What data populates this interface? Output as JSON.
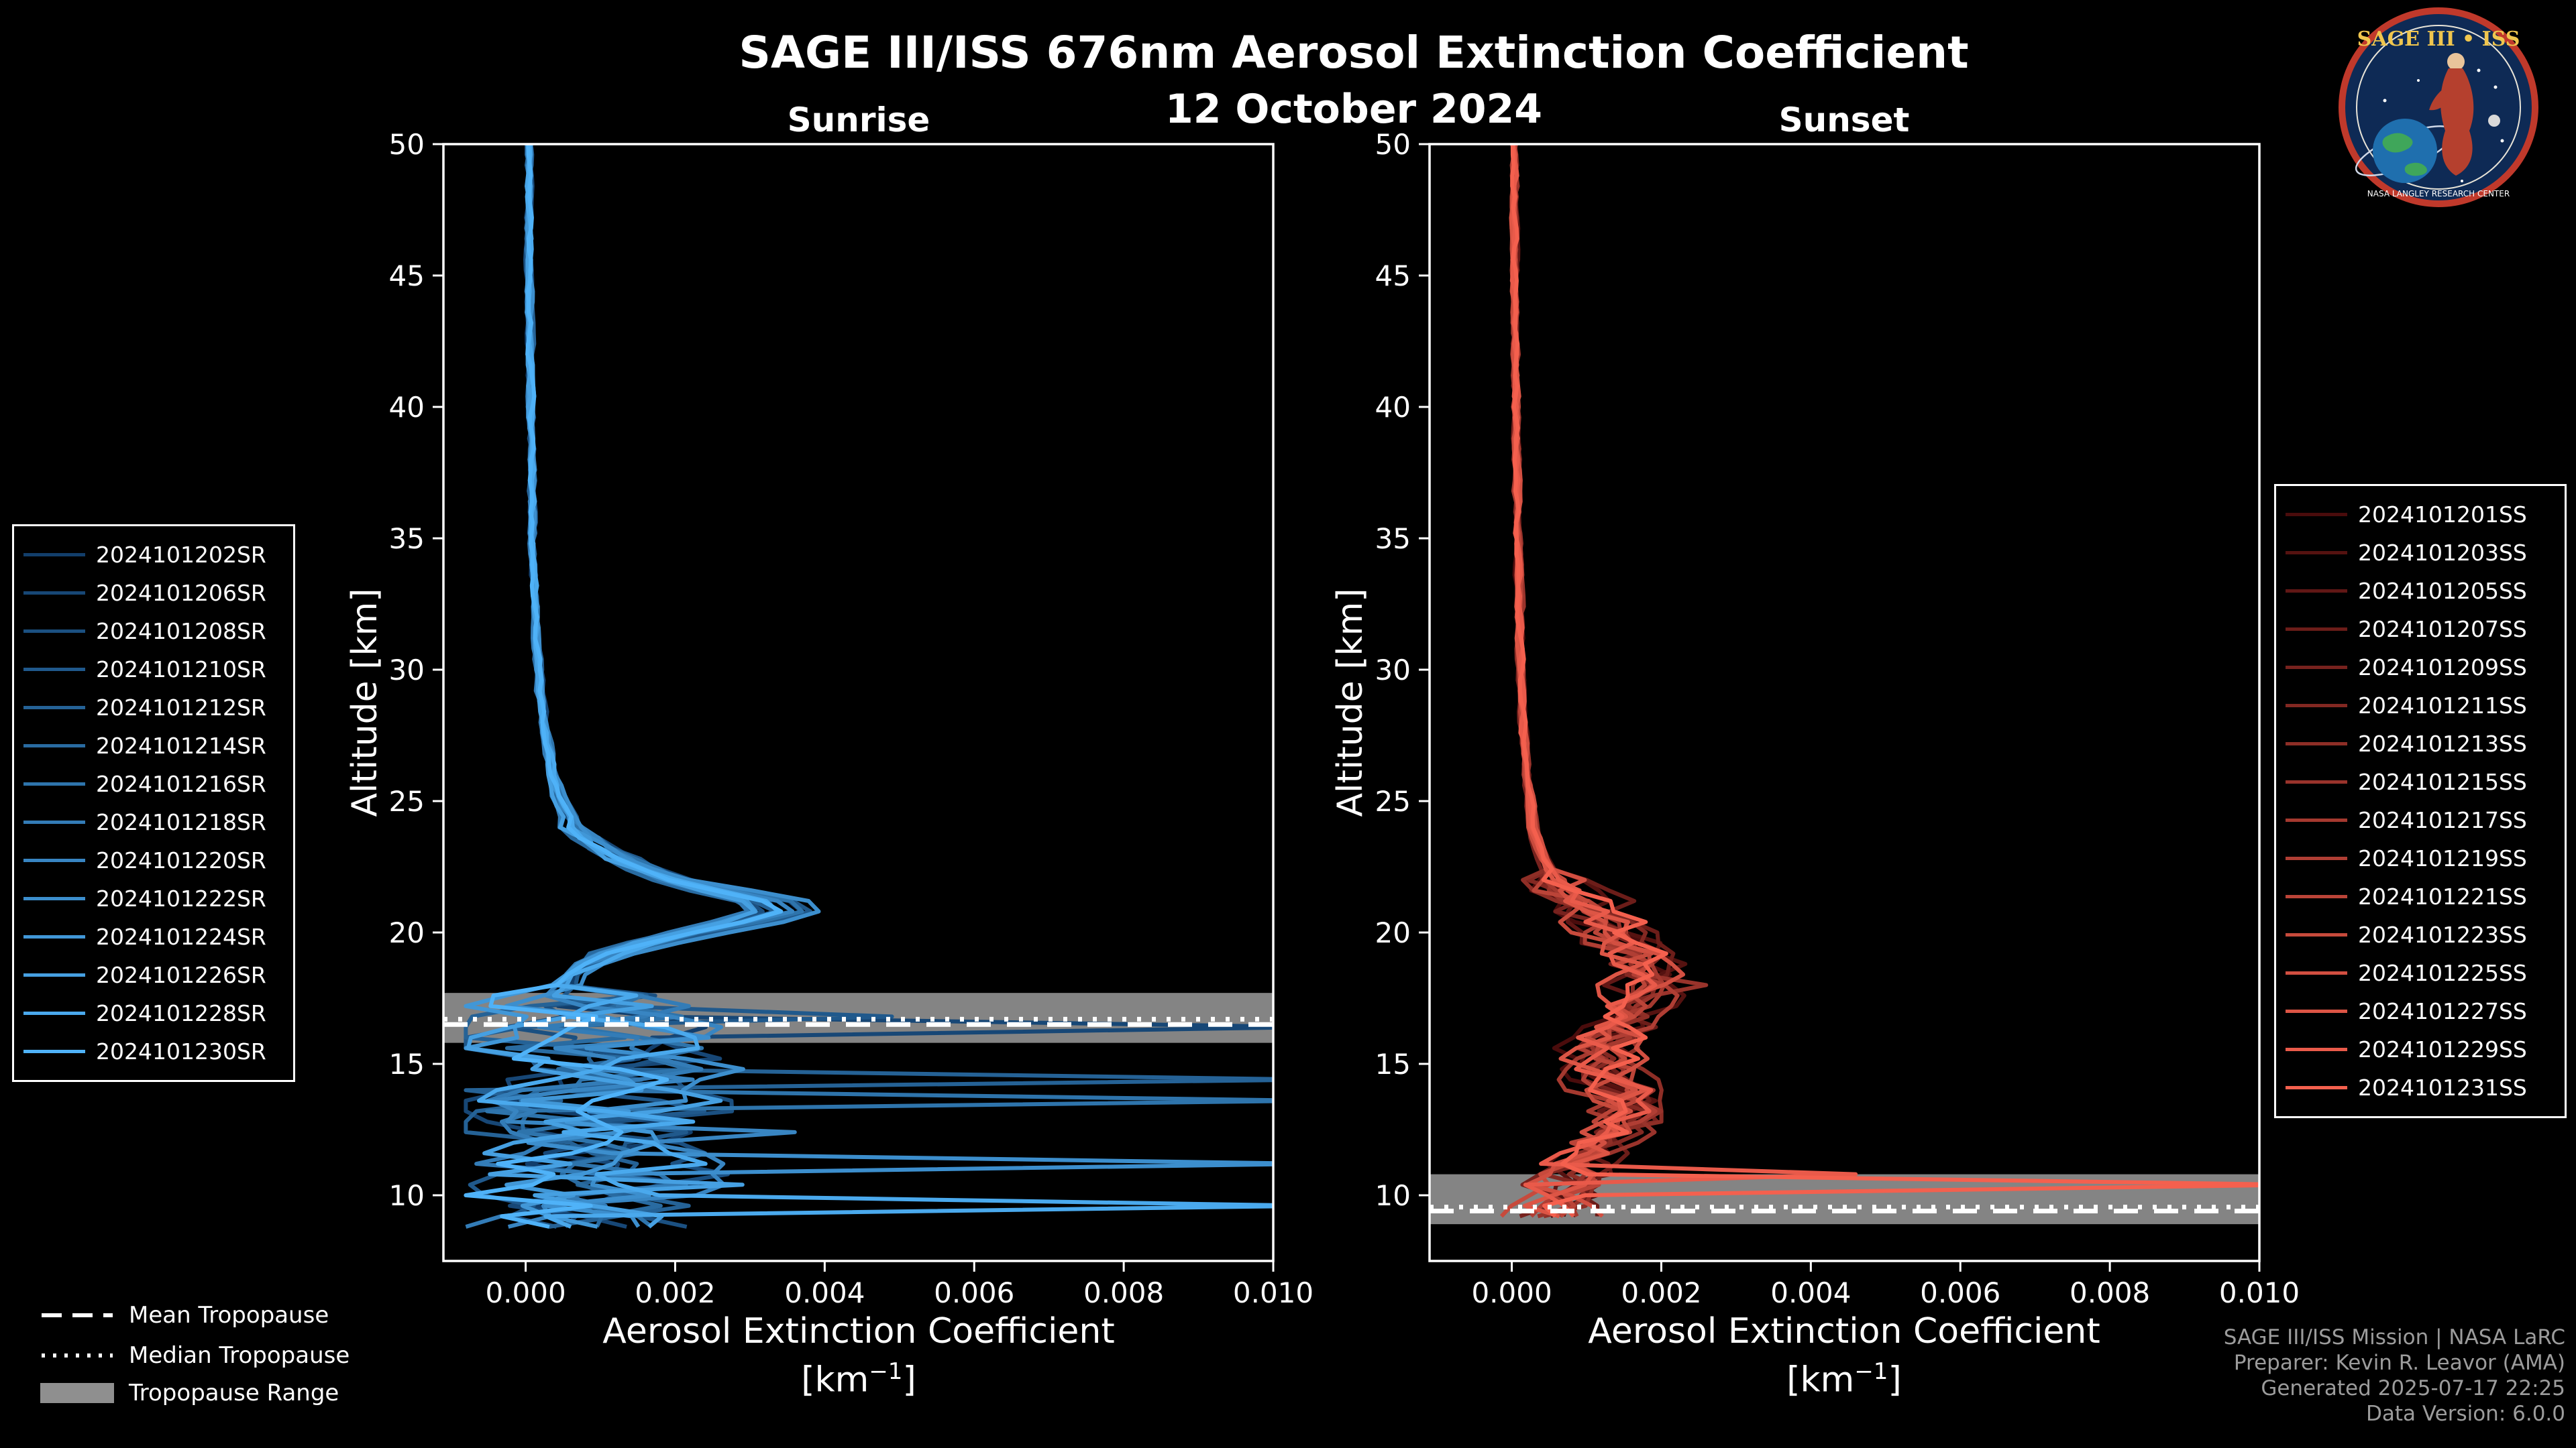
{
  "header": {
    "title": "SAGE III/ISS 676nm Aerosol Extinction Coefficient",
    "date": "12 October 2024"
  },
  "logo": {
    "name": "SAGE III • ISS",
    "ring_text": "NASA LANGLEY RESEARCH CENTER"
  },
  "axis": {
    "ylabel": "Altitude [km]",
    "xlabel": "Aerosol Extinction Coefficient",
    "unit_pre": "[km",
    "unit_sup": "−1",
    "unit_post": "]"
  },
  "tropopause_legend": {
    "mean": "Mean Tropopause",
    "median": "Median Tropopause",
    "range": "Tropopause Range"
  },
  "credits": {
    "line1": "SAGE III/ISS Mission | NASA LaRC",
    "line2": "Preparer: Kevin R. Leavor (AMA)",
    "line3": "Generated 2025-07-17 22:25",
    "line4": "Data Version: 6.0.0"
  },
  "chart_data": [
    {
      "panel_title": "Sunrise",
      "type": "line",
      "xlabel": "Aerosol Extinction Coefficient [km-1]",
      "ylabel": "Altitude [km]",
      "xlim": [
        -0.0011,
        0.01
      ],
      "ylim": [
        7.5,
        50
      ],
      "xticks": {
        "values": [
          0,
          0.002,
          0.004,
          0.006,
          0.008,
          0.01
        ],
        "labels": [
          "0.000",
          "0.002",
          "0.004",
          "0.006",
          "0.008",
          "0.010"
        ]
      },
      "yticks": {
        "values": [
          10,
          15,
          20,
          25,
          30,
          35,
          40,
          45,
          50
        ],
        "labels": [
          "10",
          "15",
          "20",
          "25",
          "30",
          "35",
          "40",
          "45",
          "50"
        ]
      },
      "tropopause": {
        "mean_km": 16.5,
        "median_km": 16.7,
        "range_km": [
          15.8,
          17.7
        ]
      },
      "band_color": "#8f8f8f",
      "line_color_range": [
        "#123E6B",
        "#4FB2F8"
      ],
      "profile_altitudes": [
        50,
        45,
        40,
        35,
        30,
        28,
        26,
        25,
        24,
        23,
        22.5,
        22,
        21.5,
        21,
        20.5,
        20,
        19.5,
        19,
        18.5,
        18,
        17.5,
        17,
        16.5,
        16,
        15.5,
        15,
        14.5,
        14,
        13,
        12,
        11,
        10,
        9,
        8.5
      ],
      "profile_base_values": [
        4e-05,
        5e-05,
        7e-05,
        0.0001,
        0.00018,
        0.00025,
        0.0004,
        0.0005,
        0.0007,
        0.0012,
        0.0016,
        0.0021,
        0.0029,
        0.0038,
        0.0033,
        0.0024,
        0.0016,
        0.001,
        0.0007,
        0.00055,
        0.0006,
        0.0009,
        0.0012,
        0.0009,
        0.0008,
        0.001,
        0.0012,
        0.0009,
        0.0008,
        0.001,
        0.0012,
        0.0008,
        0.0006,
        0.0005
      ],
      "noise_rules": [
        [
          100,
          3e-05
        ],
        [
          24,
          0.00012
        ],
        [
          17.8,
          0.0013
        ]
      ],
      "noise_floor": -0.0008,
      "noise_clamp": 0.0105,
      "min_altitude": 8.6,
      "series": [
        {
          "name": "2024101202SR",
          "color": "#123E6B",
          "scale": 0.95,
          "seed": 101,
          "spikes": []
        },
        {
          "name": "2024101206SR",
          "color": "#174776",
          "scale": 1.02,
          "seed": 102,
          "spikes": [
            [
              16.3,
              0.0105
            ]
          ]
        },
        {
          "name": "2024101208SR",
          "color": "#1B5081",
          "scale": 0.88,
          "seed": 103,
          "spikes": []
        },
        {
          "name": "2024101210SR",
          "color": "#20598C",
          "scale": 1.05,
          "seed": 104,
          "spikes": [
            [
              16.6,
              0.0049
            ]
          ]
        },
        {
          "name": "2024101212SR",
          "color": "#256296",
          "scale": 0.92,
          "seed": 105,
          "spikes": [
            [
              14.55,
              0.0105
            ]
          ]
        },
        {
          "name": "2024101214SR",
          "color": "#296BA1",
          "scale": 0.85,
          "seed": 106,
          "spikes": []
        },
        {
          "name": "2024101216SR",
          "color": "#2E74AC",
          "scale": 1.0,
          "seed": 107,
          "spikes": [
            [
              13.5,
              0.0105
            ]
          ]
        },
        {
          "name": "2024101218SR",
          "color": "#337CB7",
          "scale": 0.8,
          "seed": 108,
          "spikes": []
        },
        {
          "name": "2024101220SR",
          "color": "#3885C2",
          "scale": 0.97,
          "seed": 109,
          "spikes": [
            [
              12.3,
              0.0036
            ]
          ]
        },
        {
          "name": "2024101222SR",
          "color": "#3C8ECD",
          "scale": 1.08,
          "seed": 110,
          "spikes": [
            [
              11.0,
              0.0105
            ]
          ]
        },
        {
          "name": "2024101224SR",
          "color": "#4197D7",
          "scale": 0.9,
          "seed": 111,
          "spikes": []
        },
        {
          "name": "2024101226SR",
          "color": "#46A0E2",
          "scale": 0.84,
          "seed": 112,
          "spikes": [
            [
              10.3,
              0.0029
            ]
          ]
        },
        {
          "name": "2024101228SR",
          "color": "#4AA9ED",
          "scale": 0.98,
          "seed": 113,
          "spikes": [
            [
              9.6,
              0.0105
            ]
          ]
        },
        {
          "name": "2024101230SR",
          "color": "#4FB2F8",
          "scale": 0.94,
          "seed": 114,
          "spikes": []
        }
      ]
    },
    {
      "panel_title": "Sunset",
      "type": "line",
      "xlabel": "Aerosol Extinction Coefficient [km-1]",
      "ylabel": "Altitude [km]",
      "xlim": [
        -0.0011,
        0.01
      ],
      "ylim": [
        7.5,
        50
      ],
      "xticks": {
        "values": [
          0,
          0.002,
          0.004,
          0.006,
          0.008,
          0.01
        ],
        "labels": [
          "0.000",
          "0.002",
          "0.004",
          "0.006",
          "0.008",
          "0.010"
        ]
      },
      "yticks": {
        "values": [
          10,
          15,
          20,
          25,
          30,
          35,
          40,
          45,
          50
        ],
        "labels": [
          "10",
          "15",
          "20",
          "25",
          "30",
          "35",
          "40",
          "45",
          "50"
        ]
      },
      "tropopause": {
        "mean_km": 9.4,
        "median_km": 9.55,
        "range_km": [
          8.9,
          10.8
        ]
      },
      "band_color": "#8f8f8f",
      "line_color_range": [
        "#4A0C0C",
        "#F4604E"
      ],
      "profile_altitudes": [
        50,
        45,
        40,
        35,
        30,
        28,
        26,
        25,
        24,
        23,
        22.5,
        22,
        21.5,
        21,
        20.5,
        20,
        19.5,
        19,
        18.5,
        18,
        17.5,
        17,
        16.5,
        16,
        15.5,
        15,
        14.5,
        14,
        13,
        12,
        11,
        10,
        9,
        8.5
      ],
      "profile_base_values": [
        3e-05,
        4e-05,
        6e-05,
        8e-05,
        0.00012,
        0.00015,
        0.0002,
        0.00025,
        0.0003,
        0.0004,
        0.0005,
        0.0006,
        0.0008,
        0.001,
        0.0012,
        0.0014,
        0.0016,
        0.0017,
        0.0018,
        0.0018,
        0.0017,
        0.0016,
        0.0015,
        0.0014,
        0.0013,
        0.0013,
        0.0014,
        0.0015,
        0.0016,
        0.0012,
        0.0009,
        0.0007,
        0.0005,
        0.0004
      ],
      "noise_rules": [
        [
          100,
          3e-05
        ],
        [
          22,
          0.0004
        ],
        [
          12,
          0.00045
        ]
      ],
      "noise_floor": -0.0006,
      "noise_clamp": 0.0031,
      "min_altitude": 8.9,
      "series": [
        {
          "name": "2024101201SS",
          "color": "#4A0C0C",
          "scale": 0.9,
          "seed": 201,
          "spikes": []
        },
        {
          "name": "2024101203SS",
          "color": "#551210",
          "scale": 1.05,
          "seed": 202,
          "spikes": []
        },
        {
          "name": "2024101205SS",
          "color": "#611715",
          "scale": 0.95,
          "seed": 203,
          "spikes": []
        },
        {
          "name": "2024101207SS",
          "color": "#6C1D19",
          "scale": 1.1,
          "seed": 204,
          "spikes": []
        },
        {
          "name": "2024101209SS",
          "color": "#77221E",
          "scale": 0.85,
          "seed": 205,
          "spikes": []
        },
        {
          "name": "2024101211SS",
          "color": "#832822",
          "scale": 1.0,
          "seed": 206,
          "spikes": []
        },
        {
          "name": "2024101213SS",
          "color": "#8E2E26",
          "scale": 0.92,
          "seed": 207,
          "spikes": []
        },
        {
          "name": "2024101215SS",
          "color": "#99332B",
          "scale": 1.08,
          "seed": 208,
          "spikes": [
            [
              18.0,
              0.0026
            ]
          ]
        },
        {
          "name": "2024101217SS",
          "color": "#A5392F",
          "scale": 0.88,
          "seed": 209,
          "spikes": []
        },
        {
          "name": "2024101219SS",
          "color": "#B03E34",
          "scale": 0.96,
          "seed": 210,
          "spikes": []
        },
        {
          "name": "2024101221SS",
          "color": "#BB4438",
          "scale": 1.02,
          "seed": 211,
          "spikes": []
        },
        {
          "name": "2024101223SS",
          "color": "#C74A3C",
          "scale": 0.9,
          "seed": 212,
          "spikes": []
        },
        {
          "name": "2024101225SS",
          "color": "#D24F41",
          "scale": 1.06,
          "seed": 213,
          "spikes": []
        },
        {
          "name": "2024101227SS",
          "color": "#DD5545",
          "scale": 0.94,
          "seed": 214,
          "spikes": []
        },
        {
          "name": "2024101229SS",
          "color": "#E95A4A",
          "scale": 0.98,
          "seed": 215,
          "spikes": [
            [
              10.62,
              0.0046
            ]
          ]
        },
        {
          "name": "2024101231SS",
          "color": "#F4604E",
          "scale": 1.0,
          "seed": 216,
          "spikes": [
            [
              10.5,
              0.0105
            ]
          ]
        }
      ]
    }
  ]
}
